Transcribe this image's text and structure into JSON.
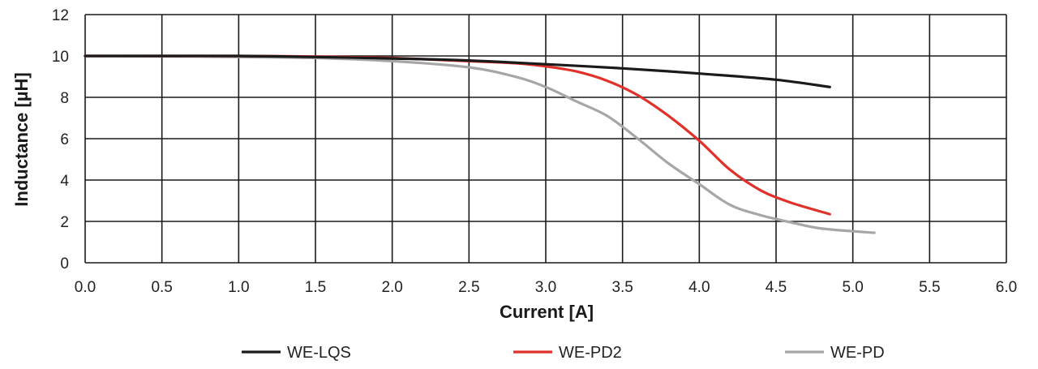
{
  "chart_data": {
    "type": "line",
    "title": "",
    "xlabel": "Current [A]",
    "ylabel": "Inductance [µH]",
    "xlim": [
      0,
      6
    ],
    "ylim": [
      0,
      12
    ],
    "x_ticks": [
      "0.0",
      "0.5",
      "1.0",
      "1.5",
      "2.0",
      "2.5",
      "3.0",
      "3.5",
      "4.0",
      "4.5",
      "5.0",
      "5.5",
      "6.0"
    ],
    "y_ticks": [
      "0",
      "2",
      "4",
      "6",
      "8",
      "10",
      "12"
    ],
    "grid": true,
    "legend_position": "bottom",
    "series": [
      {
        "name": "WE-LQS",
        "color": "#1a1a1a",
        "points": [
          [
            0,
            10.0
          ],
          [
            0.5,
            10.0
          ],
          [
            1.0,
            10.0
          ],
          [
            1.5,
            9.95
          ],
          [
            2.0,
            9.88
          ],
          [
            2.5,
            9.78
          ],
          [
            3.0,
            9.6
          ],
          [
            3.5,
            9.4
          ],
          [
            4.0,
            9.15
          ],
          [
            4.5,
            8.85
          ],
          [
            4.85,
            8.5
          ]
        ]
      },
      {
        "name": "WE-PD2",
        "color": "#e0312a",
        "points": [
          [
            0,
            10.0
          ],
          [
            0.5,
            10.0
          ],
          [
            1.0,
            10.0
          ],
          [
            1.5,
            9.97
          ],
          [
            2.0,
            9.9
          ],
          [
            2.5,
            9.75
          ],
          [
            2.8,
            9.65
          ],
          [
            3.0,
            9.5
          ],
          [
            3.2,
            9.25
          ],
          [
            3.4,
            8.8
          ],
          [
            3.6,
            8.1
          ],
          [
            3.8,
            7.1
          ],
          [
            4.0,
            5.9
          ],
          [
            4.2,
            4.5
          ],
          [
            4.4,
            3.5
          ],
          [
            4.6,
            2.9
          ],
          [
            4.85,
            2.35
          ]
        ]
      },
      {
        "name": "WE-PD",
        "color": "#a6a6a6",
        "points": [
          [
            0,
            10.0
          ],
          [
            0.5,
            9.98
          ],
          [
            1.0,
            9.95
          ],
          [
            1.5,
            9.9
          ],
          [
            2.0,
            9.75
          ],
          [
            2.5,
            9.45
          ],
          [
            2.8,
            9.0
          ],
          [
            3.0,
            8.5
          ],
          [
            3.2,
            7.8
          ],
          [
            3.4,
            7.1
          ],
          [
            3.6,
            6.0
          ],
          [
            3.8,
            4.8
          ],
          [
            4.0,
            3.8
          ],
          [
            4.2,
            2.8
          ],
          [
            4.4,
            2.3
          ],
          [
            4.6,
            1.95
          ],
          [
            4.8,
            1.65
          ],
          [
            5.14,
            1.45
          ]
        ]
      }
    ]
  }
}
